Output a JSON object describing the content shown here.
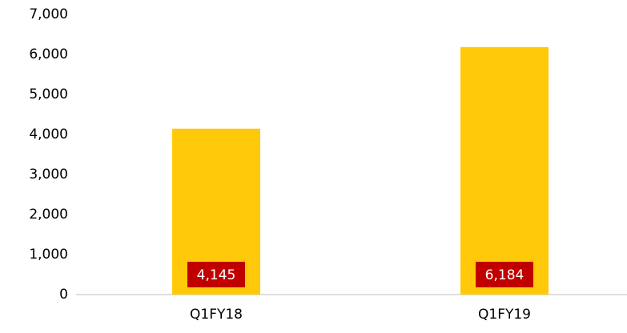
{
  "chart_data": {
    "type": "bar",
    "categories": [
      "Q1FY18",
      "Q1FY19"
    ],
    "values": [
      4145,
      6184
    ],
    "value_labels": [
      "4,145",
      "6,184"
    ],
    "color": "#ffc90a",
    "label_color": "#c00000",
    "ylim": [
      0,
      7000
    ],
    "yticks": [
      0,
      {
        "value": 1000,
        "label": "1,000"
      },
      {
        "value": 2000,
        "label": "2,000"
      },
      {
        "value": 3000,
        "label": "3,000"
      },
      {
        "value": 4000,
        "label": "4,000"
      },
      {
        "value": 5000,
        "label": "5,000"
      },
      {
        "value": 6000,
        "label": "6,000"
      },
      {
        "value": 7000,
        "label": "7,000"
      }
    ],
    "grid": false
  }
}
